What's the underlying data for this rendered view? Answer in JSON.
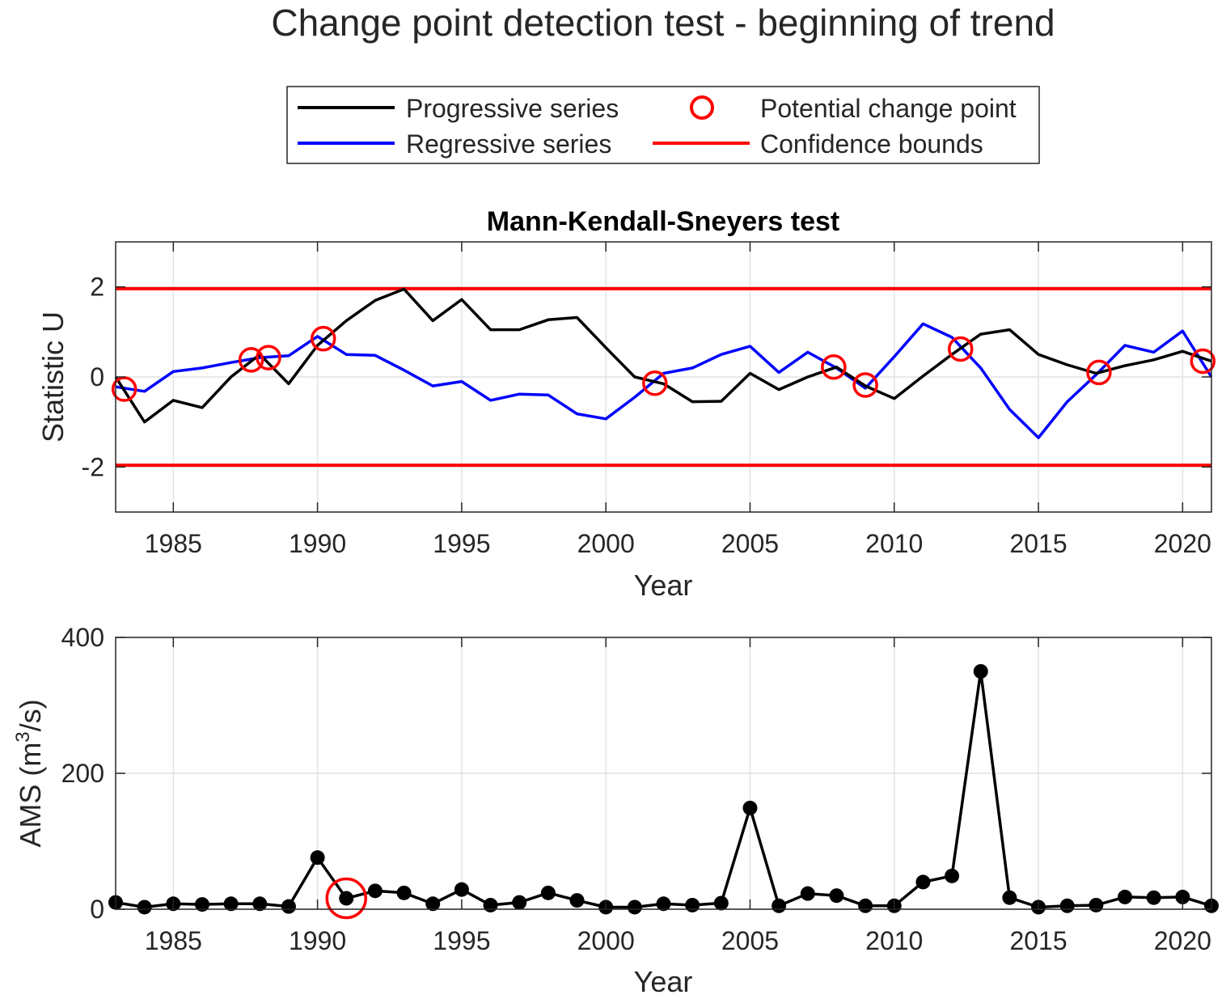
{
  "figure": {
    "title": "Change point detection test - beginning of trend"
  },
  "legend": {
    "items": [
      {
        "label": "Progressive series",
        "color": "#000000",
        "symbol": "line"
      },
      {
        "label": "Regressive series",
        "color": "#0000ff",
        "symbol": "line"
      },
      {
        "label": "Potential change point",
        "color": "#ff0000",
        "symbol": "circle"
      },
      {
        "label": "Confidence bounds",
        "color": "#ff0000",
        "symbol": "line"
      }
    ]
  },
  "chart_data": [
    {
      "type": "line",
      "title": "Mann-Kendall-Sneyers test",
      "xlabel": "Year",
      "ylabel": "Statistic U",
      "xlim": [
        1983,
        2021
      ],
      "ylim": [
        -3,
        3
      ],
      "xticks": [
        1985,
        1990,
        1995,
        2000,
        2005,
        2010,
        2015,
        2020
      ],
      "yticks": [
        -2,
        0,
        2
      ],
      "ytick_labels": [
        "-2",
        "0",
        "2"
      ],
      "grid": true,
      "x": [
        1983,
        1984,
        1985,
        1986,
        1987,
        1988,
        1989,
        1990,
        1991,
        1992,
        1993,
        1994,
        1995,
        1996,
        1997,
        1998,
        1999,
        2000,
        2001,
        2002,
        2003,
        2004,
        2005,
        2006,
        2007,
        2008,
        2009,
        2010,
        2011,
        2012,
        2013,
        2014,
        2015,
        2016,
        2017,
        2018,
        2019,
        2020,
        2021
      ],
      "series": [
        {
          "name": "Progressive series",
          "color": "#000000",
          "values": [
            0.0,
            -1.0,
            -0.52,
            -0.68,
            0.0,
            0.5,
            -0.15,
            0.7,
            1.25,
            1.7,
            1.95,
            1.25,
            1.72,
            1.05,
            1.05,
            1.27,
            1.32,
            0.65,
            0.0,
            -0.15,
            -0.55,
            -0.54,
            0.08,
            -0.28,
            0.0,
            0.22,
            -0.2,
            -0.48,
            0.02,
            0.5,
            0.95,
            1.05,
            0.5,
            0.27,
            0.08,
            0.25,
            0.38,
            0.57,
            0.35
          ]
        },
        {
          "name": "Regressive series",
          "color": "#0000ff",
          "values": [
            -0.22,
            -0.32,
            0.12,
            0.2,
            0.32,
            0.43,
            0.47,
            0.9,
            0.5,
            0.48,
            0.15,
            -0.2,
            -0.1,
            -0.52,
            -0.38,
            -0.4,
            -0.82,
            -0.93,
            -0.45,
            0.08,
            0.2,
            0.5,
            0.68,
            0.1,
            0.55,
            0.2,
            -0.25,
            0.45,
            1.18,
            0.88,
            0.2,
            -0.72,
            -1.35,
            -0.55,
            0.05,
            0.7,
            0.55,
            1.02,
            0.0
          ]
        }
      ],
      "confidence_bounds": {
        "name": "Confidence bounds",
        "color": "#ff0000",
        "values": [
          -1.96,
          1.96
        ]
      },
      "change_points": {
        "name": "Potential change point",
        "color": "#ff0000",
        "points": [
          {
            "x": 1983.3,
            "y": -0.27
          },
          {
            "x": 1987.7,
            "y": 0.38
          },
          {
            "x": 1988.3,
            "y": 0.43
          },
          {
            "x": 1990.2,
            "y": 0.85
          },
          {
            "x": 2001.7,
            "y": -0.14
          },
          {
            "x": 2007.9,
            "y": 0.22
          },
          {
            "x": 2009.0,
            "y": -0.18
          },
          {
            "x": 2012.3,
            "y": 0.62
          },
          {
            "x": 2017.1,
            "y": 0.1
          },
          {
            "x": 2020.7,
            "y": 0.35
          }
        ]
      }
    },
    {
      "type": "line",
      "xlabel": "Year",
      "ylabel": "AMS (m",
      "ylabel_sup": "3",
      "ylabel_suffix": "/s)",
      "xlim": [
        1983,
        2021
      ],
      "ylim": [
        0,
        400
      ],
      "xticks": [
        1985,
        1990,
        1995,
        2000,
        2005,
        2010,
        2015,
        2020
      ],
      "yticks": [
        0,
        200,
        400
      ],
      "grid": true,
      "x": [
        1983,
        1984,
        1985,
        1986,
        1987,
        1988,
        1989,
        1990,
        1991,
        1992,
        1993,
        1994,
        1995,
        1996,
        1997,
        1998,
        1999,
        2000,
        2001,
        2002,
        2003,
        2004,
        2005,
        2006,
        2007,
        2008,
        2009,
        2010,
        2011,
        2012,
        2013,
        2014,
        2015,
        2016,
        2017,
        2018,
        2019,
        2020,
        2021
      ],
      "series": [
        {
          "color": "#000000",
          "marker": "filled-circle",
          "values": [
            10,
            3,
            8,
            7,
            8,
            8,
            4,
            76,
            16,
            27,
            24,
            8,
            29,
            6,
            10,
            24,
            13,
            3,
            3,
            8,
            6,
            9,
            149,
            5,
            23,
            20,
            5,
            5,
            40,
            49,
            350,
            17,
            3,
            5,
            6,
            18,
            17,
            18,
            5
          ]
        }
      ],
      "change_points": {
        "color": "#ff0000",
        "points": [
          {
            "x": 1991,
            "y": 16
          }
        ]
      }
    }
  ]
}
